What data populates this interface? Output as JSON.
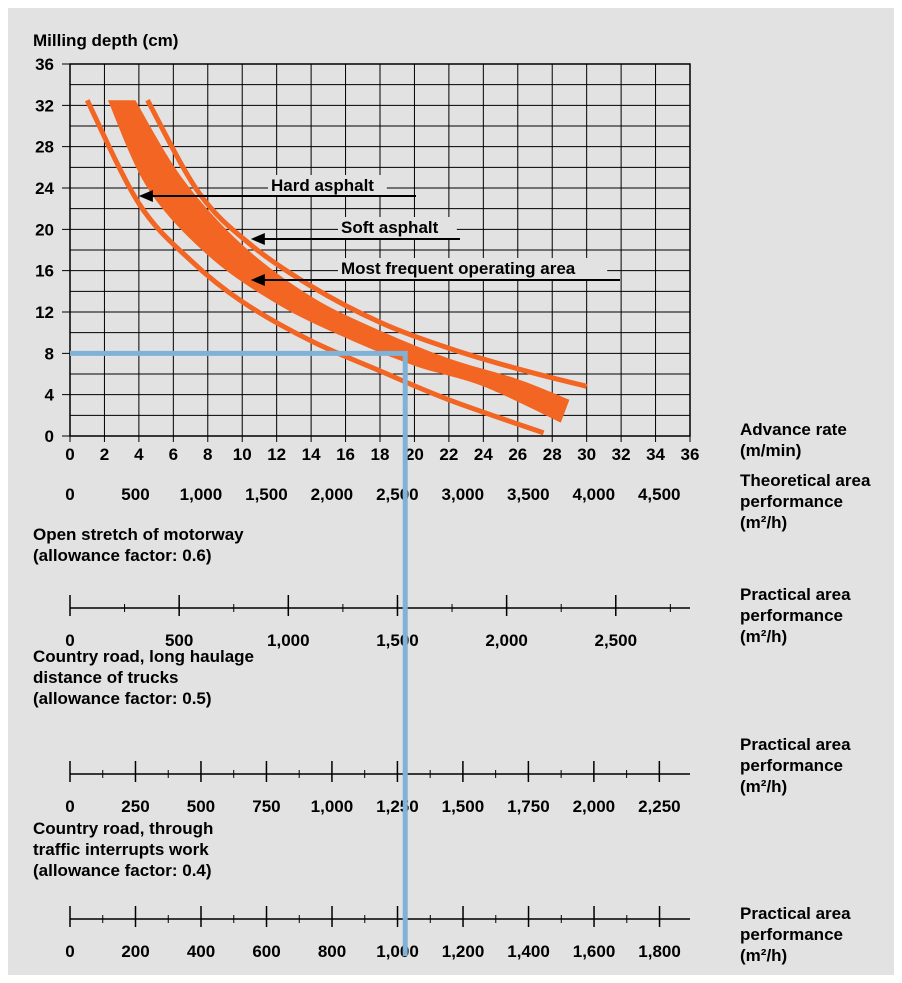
{
  "chart_data": {
    "type": "line",
    "title": "",
    "ylabel": "Milling depth (cm)",
    "ylim": [
      0,
      36
    ],
    "xlim": [
      0,
      36
    ],
    "grid": true,
    "y_ticks": [
      "0",
      "4",
      "8",
      "12",
      "16",
      "20",
      "24",
      "28",
      "32",
      "36"
    ],
    "x_ticks": [
      "0",
      "2",
      "4",
      "6",
      "8",
      "10",
      "12",
      "14",
      "16",
      "18",
      "20",
      "22",
      "24",
      "26",
      "28",
      "30",
      "32",
      "34",
      "36"
    ],
    "x_axis_label": "Advance rate\n(m/min)",
    "colors": {
      "band": "#f26522",
      "guide": "#7fb2d6",
      "panel": "#e2e2e3"
    },
    "series": [
      {
        "name": "Hard asphalt",
        "x": [
          1.0,
          4.0,
          7.0,
          10.0,
          14.0,
          18.0,
          22.0,
          27.5
        ],
        "y": [
          32.5,
          22.5,
          17.0,
          13.0,
          9.2,
          6.3,
          3.5,
          0.3
        ]
      },
      {
        "name": "Soft asphalt",
        "x": [
          4.5,
          7.5,
          10.5,
          14.0,
          18.0,
          22.0,
          26.0,
          30.0
        ],
        "y": [
          32.5,
          23.5,
          18.5,
          14.5,
          11.0,
          8.5,
          6.5,
          4.8
        ]
      },
      {
        "name": "Most frequent operating area",
        "upper_x": [
          3.8,
          6.5,
          10.0,
          14.0,
          18.0,
          22.0,
          26.0,
          29.0
        ],
        "upper_y": [
          32.5,
          25.0,
          18.5,
          13.5,
          10.2,
          7.5,
          5.5,
          3.5
        ],
        "lower_x": [
          2.2,
          4.5,
          8.0,
          12.0,
          16.0,
          20.0,
          24.0,
          28.5
        ],
        "lower_y": [
          32.5,
          24.0,
          17.5,
          12.8,
          9.5,
          6.8,
          4.8,
          1.3
        ]
      }
    ],
    "annotations": [
      {
        "text": "Hard asphalt",
        "arrow_to": [
          4.0,
          22.5
        ]
      },
      {
        "text": "Soft asphalt",
        "arrow_to": [
          10.5,
          18.5
        ]
      },
      {
        "text": "Most frequent operating area",
        "arrow_to": [
          10.5,
          15.0
        ]
      }
    ],
    "guide_line": {
      "depth": 8,
      "advance_rate": 19
    },
    "scales": [
      {
        "title": "",
        "side_label": "Theoretical area\nperformance\n(m²/h)",
        "ticks": [
          {
            "v": 0,
            "label": "0"
          },
          {
            "v": 500,
            "label": "500"
          },
          {
            "v": 1000,
            "label": "1,000"
          },
          {
            "v": 1500,
            "label": "1,500"
          },
          {
            "v": 2000,
            "label": "2,000"
          },
          {
            "v": 2500,
            "label": "2,500"
          },
          {
            "v": 3000,
            "label": "3,000"
          },
          {
            "v": 3500,
            "label": "3,500"
          },
          {
            "v": 4000,
            "label": "4,000"
          },
          {
            "v": 4500,
            "label": "4,500"
          }
        ],
        "max": 4735
      },
      {
        "title": "Open stretch of motorway\n(allowance factor: 0.6)",
        "side_label": "Practical area\nperformance\n(m²/h)",
        "ticks": [
          {
            "v": 0,
            "label": "0"
          },
          {
            "v": 500,
            "label": "500"
          },
          {
            "v": 1000,
            "label": "1,000"
          },
          {
            "v": 1500,
            "label": "1,500"
          },
          {
            "v": 2000,
            "label": "2,000"
          },
          {
            "v": 2500,
            "label": "2,500"
          }
        ],
        "minor_step": 250,
        "max": 2840
      },
      {
        "title": "Country road, long haulage\ndistance of trucks\n(allowance factor: 0.5)",
        "side_label": "Practical area\nperformance\n(m²/h)",
        "ticks": [
          {
            "v": 0,
            "label": "0"
          },
          {
            "v": 250,
            "label": "250"
          },
          {
            "v": 500,
            "label": "500"
          },
          {
            "v": 750,
            "label": "750"
          },
          {
            "v": 1000,
            "label": "1,000"
          },
          {
            "v": 1250,
            "label": "1,250"
          },
          {
            "v": 1500,
            "label": "1,500"
          },
          {
            "v": 1750,
            "label": "1,750"
          },
          {
            "v": 2000,
            "label": "2,000"
          },
          {
            "v": 2250,
            "label": "2,250"
          }
        ],
        "minor_step": 125,
        "max": 2367
      },
      {
        "title": "Country road, through\ntraffic interrupts work\n(allowance factor: 0.4)",
        "side_label": "Practical area\nperformance\n(m²/h)",
        "ticks": [
          {
            "v": 0,
            "label": "0"
          },
          {
            "v": 200,
            "label": "200"
          },
          {
            "v": 400,
            "label": "400"
          },
          {
            "v": 600,
            "label": "600"
          },
          {
            "v": 800,
            "label": "800"
          },
          {
            "v": 1000,
            "label": "1,000"
          },
          {
            "v": 1200,
            "label": "1,200"
          },
          {
            "v": 1400,
            "label": "1,400"
          },
          {
            "v": 1600,
            "label": "1,600"
          },
          {
            "v": 1800,
            "label": "1,800"
          }
        ],
        "minor_step": 100,
        "max": 1893
      }
    ]
  }
}
